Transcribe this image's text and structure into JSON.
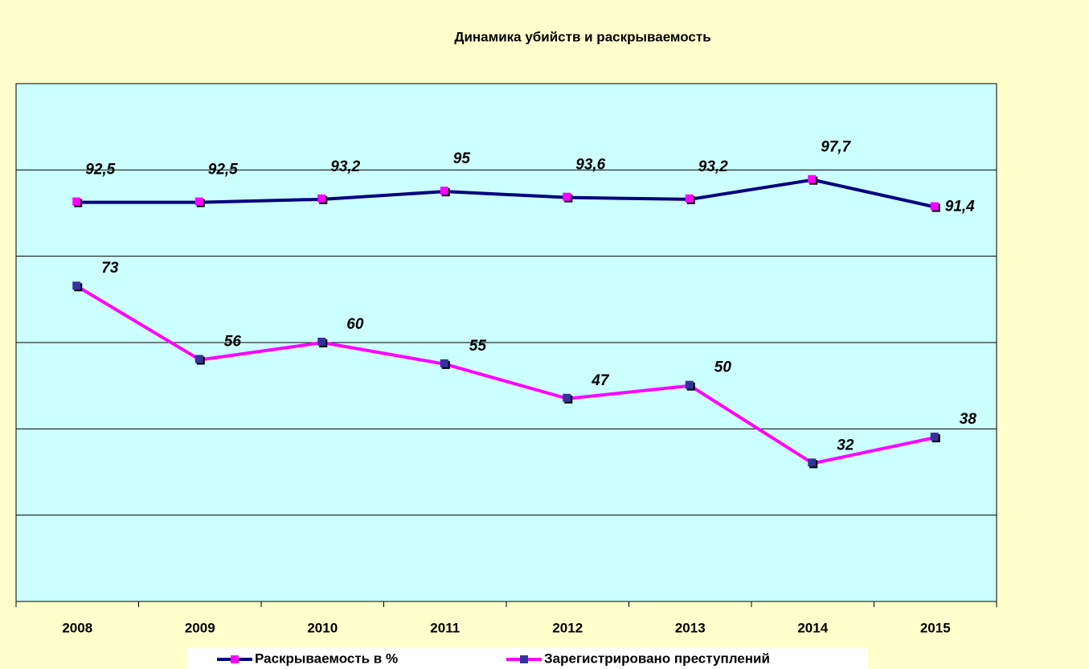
{
  "chart_data": {
    "type": "line",
    "title": "Динамика убийств и  раскрываемость",
    "categories": [
      "2008",
      "2009",
      "2010",
      "2011",
      "2012",
      "2013",
      "2014",
      "2015"
    ],
    "series": [
      {
        "name": "Раскрываемость в %",
        "color": "#000080",
        "marker_color": "#ff00ff",
        "values": [
          92.5,
          92.5,
          93.2,
          95,
          93.6,
          93.2,
          97.7,
          91.4
        ],
        "value_labels": [
          "92,5",
          "92,5",
          "93,2",
          "95",
          "93,6",
          "93,2",
          "97,7",
          "91,4"
        ]
      },
      {
        "name": "Зарегистрировано преступлений",
        "color": "#ff00ff",
        "marker_color": "#333399",
        "values": [
          73,
          56,
          60,
          55,
          47,
          50,
          32,
          38
        ]
      }
    ],
    "ylim": [
      0,
      120
    ],
    "yticks": [
      0,
      20,
      40,
      60,
      80,
      100,
      120
    ],
    "grid": true
  }
}
